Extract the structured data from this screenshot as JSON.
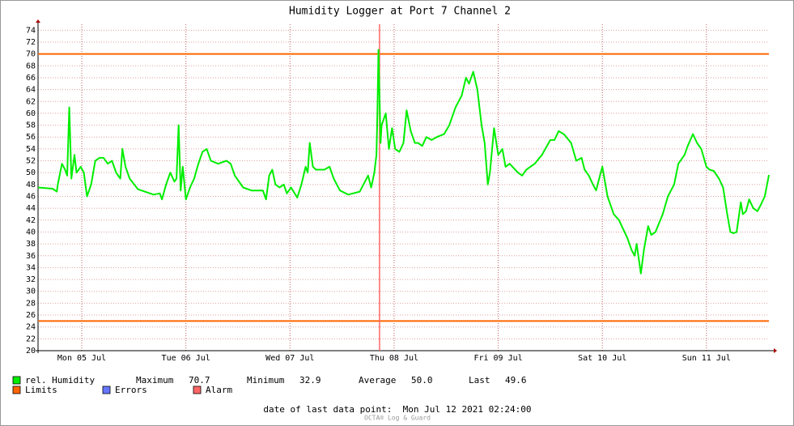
{
  "chart_data": {
    "type": "line",
    "title": "Humidity Logger at Port 7 Channel 2",
    "x": [
      0.08,
      0.22,
      0.26,
      0.27,
      0.31,
      0.34,
      0.36,
      0.38,
      0.4,
      0.43,
      0.45,
      0.49,
      0.52,
      0.55,
      0.59,
      0.63,
      0.67,
      0.71,
      0.75,
      0.79,
      0.83,
      0.87,
      0.89,
      0.92,
      0.96,
      1.04,
      1.19,
      1.25,
      1.27,
      1.31,
      1.35,
      1.39,
      1.41,
      1.43,
      1.45,
      1.47,
      1.5,
      1.54,
      1.58,
      1.62,
      1.66,
      1.7,
      1.74,
      1.81,
      1.89,
      1.93,
      1.97,
      2.05,
      2.13,
      2.24,
      2.27,
      2.3,
      2.33,
      2.36,
      2.4,
      2.44,
      2.47,
      2.51,
      2.57,
      2.61,
      2.65,
      2.67,
      2.69,
      2.72,
      2.75,
      2.83,
      2.88,
      2.92,
      2.98,
      3.06,
      3.17,
      3.25,
      3.28,
      3.31,
      3.33,
      3.34,
      3.35,
      3.37,
      3.38,
      3.42,
      3.45,
      3.48,
      3.51,
      3.55,
      3.59,
      3.62,
      3.66,
      3.7,
      3.73,
      3.77,
      3.81,
      3.86,
      3.91,
      3.98,
      4.03,
      4.09,
      4.15,
      4.19,
      4.22,
      4.26,
      4.3,
      4.34,
      4.37,
      4.4,
      4.42,
      4.46,
      4.5,
      4.54,
      4.57,
      4.61,
      4.69,
      4.73,
      4.77,
      4.85,
      4.92,
      5.0,
      5.04,
      5.08,
      5.13,
      5.2,
      5.25,
      5.3,
      5.33,
      5.37,
      5.41,
      5.44,
      5.47,
      5.5,
      5.55,
      5.61,
      5.66,
      5.7,
      5.74,
      5.78,
      5.81,
      5.83,
      5.87,
      5.9,
      5.94,
      5.97,
      6.01,
      6.08,
      6.13,
      6.19,
      6.23,
      6.29,
      6.32,
      6.37,
      6.41,
      6.45,
      6.5,
      6.53,
      6.57,
      6.62,
      6.66,
      6.7,
      6.73,
      6.76,
      6.79,
      6.83,
      6.85,
      6.88,
      6.91,
      6.95,
      6.99,
      7.02,
      7.06,
      7.1
    ],
    "series": [
      {
        "name": "rel. Humidity",
        "color": "#00ee00",
        "values": [
          47.5,
          47.3,
          46.8,
          48,
          51.5,
          50.5,
          49.5,
          61,
          49,
          53,
          50,
          51,
          50,
          46,
          48,
          52,
          52.5,
          52.5,
          51.5,
          52,
          50,
          49,
          54,
          51,
          49,
          47.2,
          46.3,
          46.5,
          45.5,
          48,
          50,
          48.5,
          49,
          58,
          47,
          51,
          45.5,
          47.5,
          49,
          51.5,
          53.5,
          54,
          52,
          51.5,
          52,
          51.5,
          49.5,
          47.5,
          47,
          47,
          45.5,
          49.5,
          50.5,
          48,
          47.5,
          48,
          46.5,
          47.5,
          45.8,
          48,
          51,
          50,
          55,
          51,
          50.5,
          50.5,
          51,
          49,
          47,
          46.3,
          46.8,
          49.5,
          47.5,
          50,
          53,
          60,
          70.7,
          55,
          58,
          60,
          54,
          57.5,
          54,
          53.5,
          55,
          60.5,
          57,
          55,
          55,
          54.5,
          56,
          55.5,
          56,
          56.5,
          58,
          61,
          63,
          66,
          65,
          67,
          64,
          58,
          55,
          48,
          50,
          57.5,
          53,
          54,
          51,
          51.5,
          50,
          49.5,
          50.5,
          51.5,
          53,
          55.5,
          55.5,
          57,
          56.5,
          55,
          52,
          52.5,
          50.5,
          49.5,
          48,
          47,
          49,
          51,
          46,
          43,
          42,
          40.5,
          39,
          37,
          36,
          38,
          33,
          37,
          41,
          39.5,
          40,
          43,
          46,
          48,
          51.5,
          53,
          54.5,
          56.5,
          55,
          54,
          51,
          50.5,
          50.3,
          49,
          47.5,
          43,
          40,
          39.8,
          40,
          45,
          43,
          43.5,
          45.5,
          44,
          43.5,
          44.5,
          46,
          49.6
        ]
      }
    ],
    "xlim": [
      0.08,
      7.1
    ],
    "xticks": [
      {
        "value": 0.5,
        "label": "Mon 05 Jul"
      },
      {
        "value": 1.5,
        "label": "Tue 06 Jul"
      },
      {
        "value": 2.5,
        "label": "Wed 07 Jul"
      },
      {
        "value": 3.5,
        "label": "Thu 08 Jul"
      },
      {
        "value": 4.5,
        "label": "Fri 09 Jul"
      },
      {
        "value": 5.5,
        "label": "Sat 10 Jul"
      },
      {
        "value": 6.5,
        "label": "Sun 11 Jul"
      }
    ],
    "ylim": [
      20,
      75
    ],
    "yticks": [
      20,
      22,
      24,
      26,
      28,
      30,
      32,
      34,
      36,
      38,
      40,
      42,
      44,
      46,
      48,
      50,
      52,
      54,
      56,
      58,
      60,
      62,
      64,
      66,
      68,
      70,
      72,
      74
    ],
    "grid": true,
    "limits": {
      "name": "Limits",
      "color": "#ff6600",
      "values": [
        70,
        25
      ]
    },
    "errors": {
      "name": "Errors",
      "color": "#6677ff"
    },
    "alarm": {
      "name": "Alarm",
      "color": "#ff6666",
      "x": [
        3.36
      ]
    },
    "stats": {
      "names": [
        "Maximum",
        "Minimum",
        "Average",
        "Last"
      ],
      "values": [
        70.7,
        32.9,
        50.0,
        49.6
      ],
      "value_labels": [
        "70.7",
        "32.9",
        "50.0",
        "49.6"
      ]
    },
    "footer": "date of last data point:  Mon Jul 12 2021 02:24:00",
    "credit": "OCTA® Log & Guard"
  }
}
